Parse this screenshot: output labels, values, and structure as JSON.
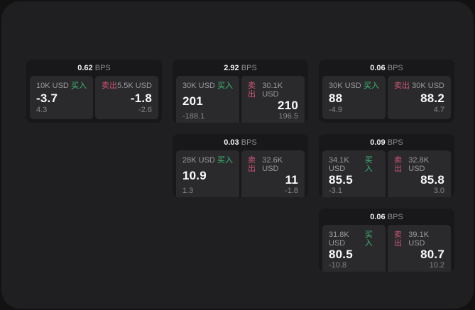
{
  "colors": {
    "page_bg": "#121212",
    "panel_bg": "#1f1f21",
    "card_bg": "#18181a",
    "tile_bg": "#2a2a2d",
    "text_primary": "#fafafa",
    "text_muted": "#9b9b9c",
    "buy_green": "#3dbd74",
    "sell_red": "#d05573"
  },
  "labels": {
    "bps_unit": "BPS",
    "buy": "买入",
    "sell": "卖出"
  },
  "cards": [
    {
      "bps": "0.62",
      "row": 1,
      "col": 1,
      "buy": {
        "notional": "10K USD",
        "price": "-3.7",
        "delta": "4.3"
      },
      "sell": {
        "notional": "5.5K USD",
        "price": "-1.8",
        "delta": "-2.6"
      }
    },
    {
      "bps": "2.92",
      "row": 1,
      "col": 2,
      "buy": {
        "notional": "30K USD",
        "price": "201",
        "delta": "-188.1"
      },
      "sell": {
        "notional": "30.1K USD",
        "price": "210",
        "delta": "196.5"
      }
    },
    {
      "bps": "0.06",
      "row": 1,
      "col": 3,
      "buy": {
        "notional": "30K USD",
        "price": "88",
        "delta": "-4.9"
      },
      "sell": {
        "notional": "30K USD",
        "price": "88.2",
        "delta": "4.7"
      }
    },
    {
      "bps": "0.03",
      "row": 2,
      "col": 2,
      "buy": {
        "notional": "28K USD",
        "price": "10.9",
        "delta": "1.3"
      },
      "sell": {
        "notional": "32.6K USD",
        "price": "11",
        "delta": "-1.8"
      }
    },
    {
      "bps": "0.09",
      "row": 2,
      "col": 3,
      "buy": {
        "notional": "34.1K USD",
        "price": "85.5",
        "delta": "-3.1"
      },
      "sell": {
        "notional": "32.8K USD",
        "price": "85.8",
        "delta": "3.0"
      }
    },
    {
      "bps": "0.06",
      "row": 3,
      "col": 3,
      "buy": {
        "notional": "31.8K USD",
        "price": "80.5",
        "delta": "-10.8"
      },
      "sell": {
        "notional": "39.1K USD",
        "price": "80.7",
        "delta": "10.2"
      }
    }
  ]
}
